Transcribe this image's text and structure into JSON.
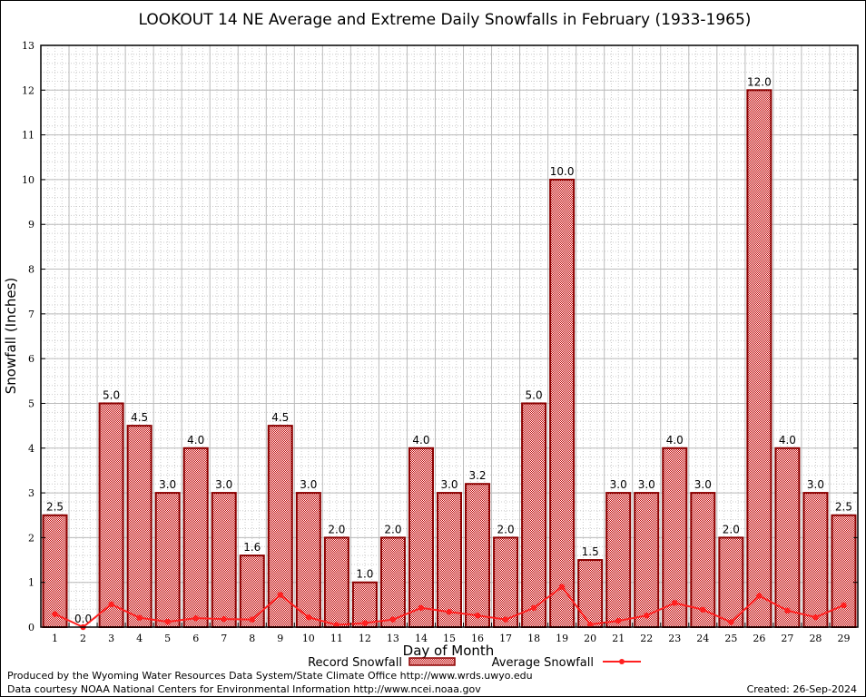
{
  "chart_data": {
    "type": "bar",
    "title": "LOOKOUT 14 NE Average and Extreme Daily Snowfalls in February (1933-1965)",
    "xlabel": "Day of Month",
    "ylabel": "Snowfall (Inches)",
    "ylim": [
      0,
      13
    ],
    "yticks": [
      "0",
      "1",
      "2",
      "3",
      "4",
      "5",
      "6",
      "7",
      "8",
      "9",
      "10",
      "11",
      "12",
      "13"
    ],
    "categories": [
      "1",
      "2",
      "3",
      "4",
      "5",
      "6",
      "7",
      "8",
      "9",
      "10",
      "11",
      "12",
      "13",
      "14",
      "15",
      "16",
      "17",
      "18",
      "19",
      "20",
      "21",
      "22",
      "23",
      "24",
      "25",
      "26",
      "27",
      "28",
      "29"
    ],
    "grid": true,
    "legend_placement": "bottom-center",
    "series": [
      {
        "name": "Record Snowfall",
        "type": "bar",
        "color": "#b00000",
        "values": [
          2.5,
          0.0,
          5.0,
          4.5,
          3.0,
          4.0,
          3.0,
          1.6,
          4.5,
          3.0,
          2.0,
          1.0,
          2.0,
          4.0,
          3.0,
          3.2,
          2.0,
          5.0,
          10.0,
          1.5,
          3.0,
          3.0,
          4.0,
          3.0,
          2.0,
          12.0,
          4.0,
          3.0,
          2.5
        ],
        "labels": [
          "2.5",
          "0.0",
          "5.0",
          "4.5",
          "3.0",
          "4.0",
          "3.0",
          "1.6",
          "4.5",
          "3.0",
          "2.0",
          "1.0",
          "2.0",
          "4.0",
          "3.0",
          "3.2",
          "2.0",
          "5.0",
          "10.0",
          "1.5",
          "3.0",
          "3.0",
          "4.0",
          "3.0",
          "2.0",
          "12.0",
          "4.0",
          "3.0",
          "2.5"
        ]
      },
      {
        "name": "Average Snowfall",
        "type": "line",
        "color": "#ff2020",
        "values": [
          0.29,
          0.0,
          0.51,
          0.21,
          0.12,
          0.2,
          0.18,
          0.17,
          0.72,
          0.22,
          0.05,
          0.09,
          0.17,
          0.43,
          0.34,
          0.26,
          0.17,
          0.43,
          0.9,
          0.06,
          0.14,
          0.26,
          0.54,
          0.39,
          0.11,
          0.7,
          0.37,
          0.22,
          0.49
        ]
      }
    ]
  },
  "footer": {
    "produced_by": "Produced by the Wyoming Water Resources Data System/State Climate Office http://www.wrds.uwyo.edu",
    "courtesy": "Data courtesy NOAA National Centers for Environmental Information http://www.ncei.noaa.gov",
    "created": "Created:  26-Sep-2024"
  }
}
